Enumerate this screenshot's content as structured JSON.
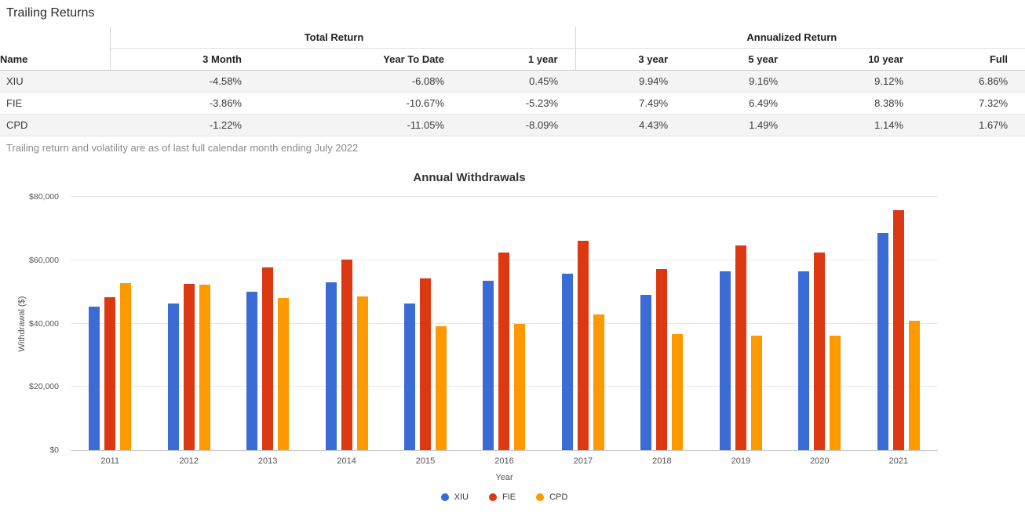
{
  "trailing_returns": {
    "title": "Trailing Returns",
    "group_headers": {
      "total": "Total Return",
      "annualized": "Annualized Return"
    },
    "columns": [
      "Name",
      "3 Month",
      "Year To Date",
      "1 year",
      "3 year",
      "5 year",
      "10 year",
      "Full"
    ],
    "rows": [
      {
        "name": "XIU",
        "values": [
          "-4.58%",
          "-6.08%",
          "0.45%",
          "9.94%",
          "9.16%",
          "9.12%",
          "6.86%"
        ]
      },
      {
        "name": "FIE",
        "values": [
          "-3.86%",
          "-10.67%",
          "-5.23%",
          "7.49%",
          "6.49%",
          "8.38%",
          "7.32%"
        ]
      },
      {
        "name": "CPD",
        "values": [
          "-1.22%",
          "-11.05%",
          "-8.09%",
          "4.43%",
          "1.49%",
          "1.14%",
          "1.67%"
        ]
      }
    ],
    "footnote": "Trailing return and volatility are as of last full calendar month ending July 2022"
  },
  "chart_data": {
    "type": "bar",
    "title": "Annual Withdrawals",
    "xlabel": "Year",
    "ylabel": "Withdrawal ($)",
    "ylim": [
      0,
      80000
    ],
    "grid": true,
    "legend_position": "bottom",
    "y_ticks": [
      "$0",
      "$20,000",
      "$40,000",
      "$60,000",
      "$80,000"
    ],
    "categories": [
      "2011",
      "2012",
      "2013",
      "2014",
      "2015",
      "2016",
      "2017",
      "2018",
      "2019",
      "2020",
      "2021"
    ],
    "series": [
      {
        "name": "XIU",
        "color": "#3b6cd6",
        "values": [
          45300,
          46400,
          50000,
          53000,
          46400,
          53500,
          55800,
          49000,
          56400,
          56400,
          68700
        ]
      },
      {
        "name": "FIE",
        "color": "#dc3912",
        "values": [
          48300,
          52500,
          57700,
          60100,
          54200,
          62300,
          66200,
          57200,
          64700,
          62300,
          75900
        ]
      },
      {
        "name": "CPD",
        "color": "#ff9900",
        "values": [
          52700,
          52200,
          48100,
          48500,
          39100,
          39800,
          42800,
          36700,
          36100,
          36100,
          40900
        ]
      }
    ]
  }
}
